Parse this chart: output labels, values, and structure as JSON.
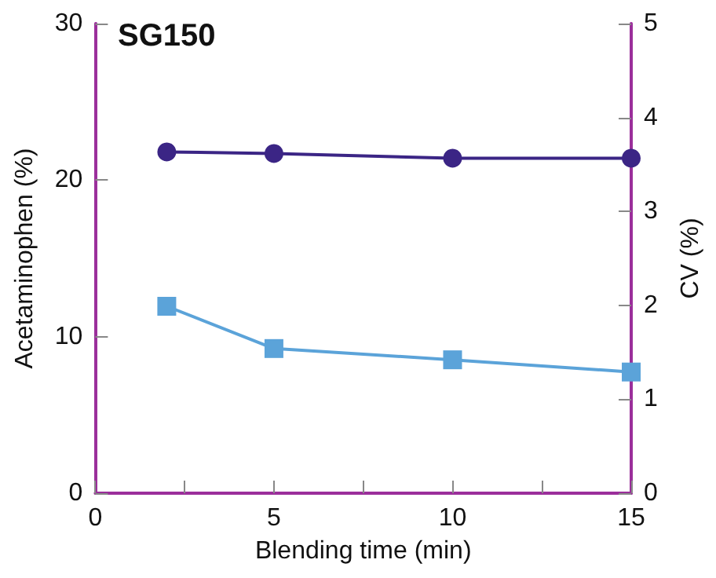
{
  "chart_data": {
    "type": "line",
    "title": "SG150",
    "xlabel": "Blending time (min)",
    "ylabel": "Acetaminophen (%)",
    "y2label": "CV (%)",
    "x": [
      2,
      5,
      10,
      15
    ],
    "series": [
      {
        "color": "#3b2585",
        "values": [
          21.8,
          21.7,
          21.4,
          21.4
        ],
        "marker": "circle"
      },
      {
        "color": "#5ba3d9",
        "values": [
          1.99,
          1.54,
          1.42,
          1.29
        ],
        "marker": "square",
        "axis": "y2"
      }
    ],
    "xlim": [
      0,
      15
    ],
    "xticks": [
      0,
      {
        "value": 2.5,
        "label": null
      },
      5,
      {
        "value": 7.5,
        "label": null
      },
      10,
      {
        "value": 12.5,
        "label": null
      },
      15
    ],
    "ylim": [
      0,
      30
    ],
    "yticks": [
      0,
      10,
      20,
      30
    ],
    "y2lim": [
      0,
      5
    ],
    "y2ticks": [
      0,
      1,
      2,
      3,
      4,
      5
    ],
    "grid": false,
    "line_style": "solid"
  }
}
